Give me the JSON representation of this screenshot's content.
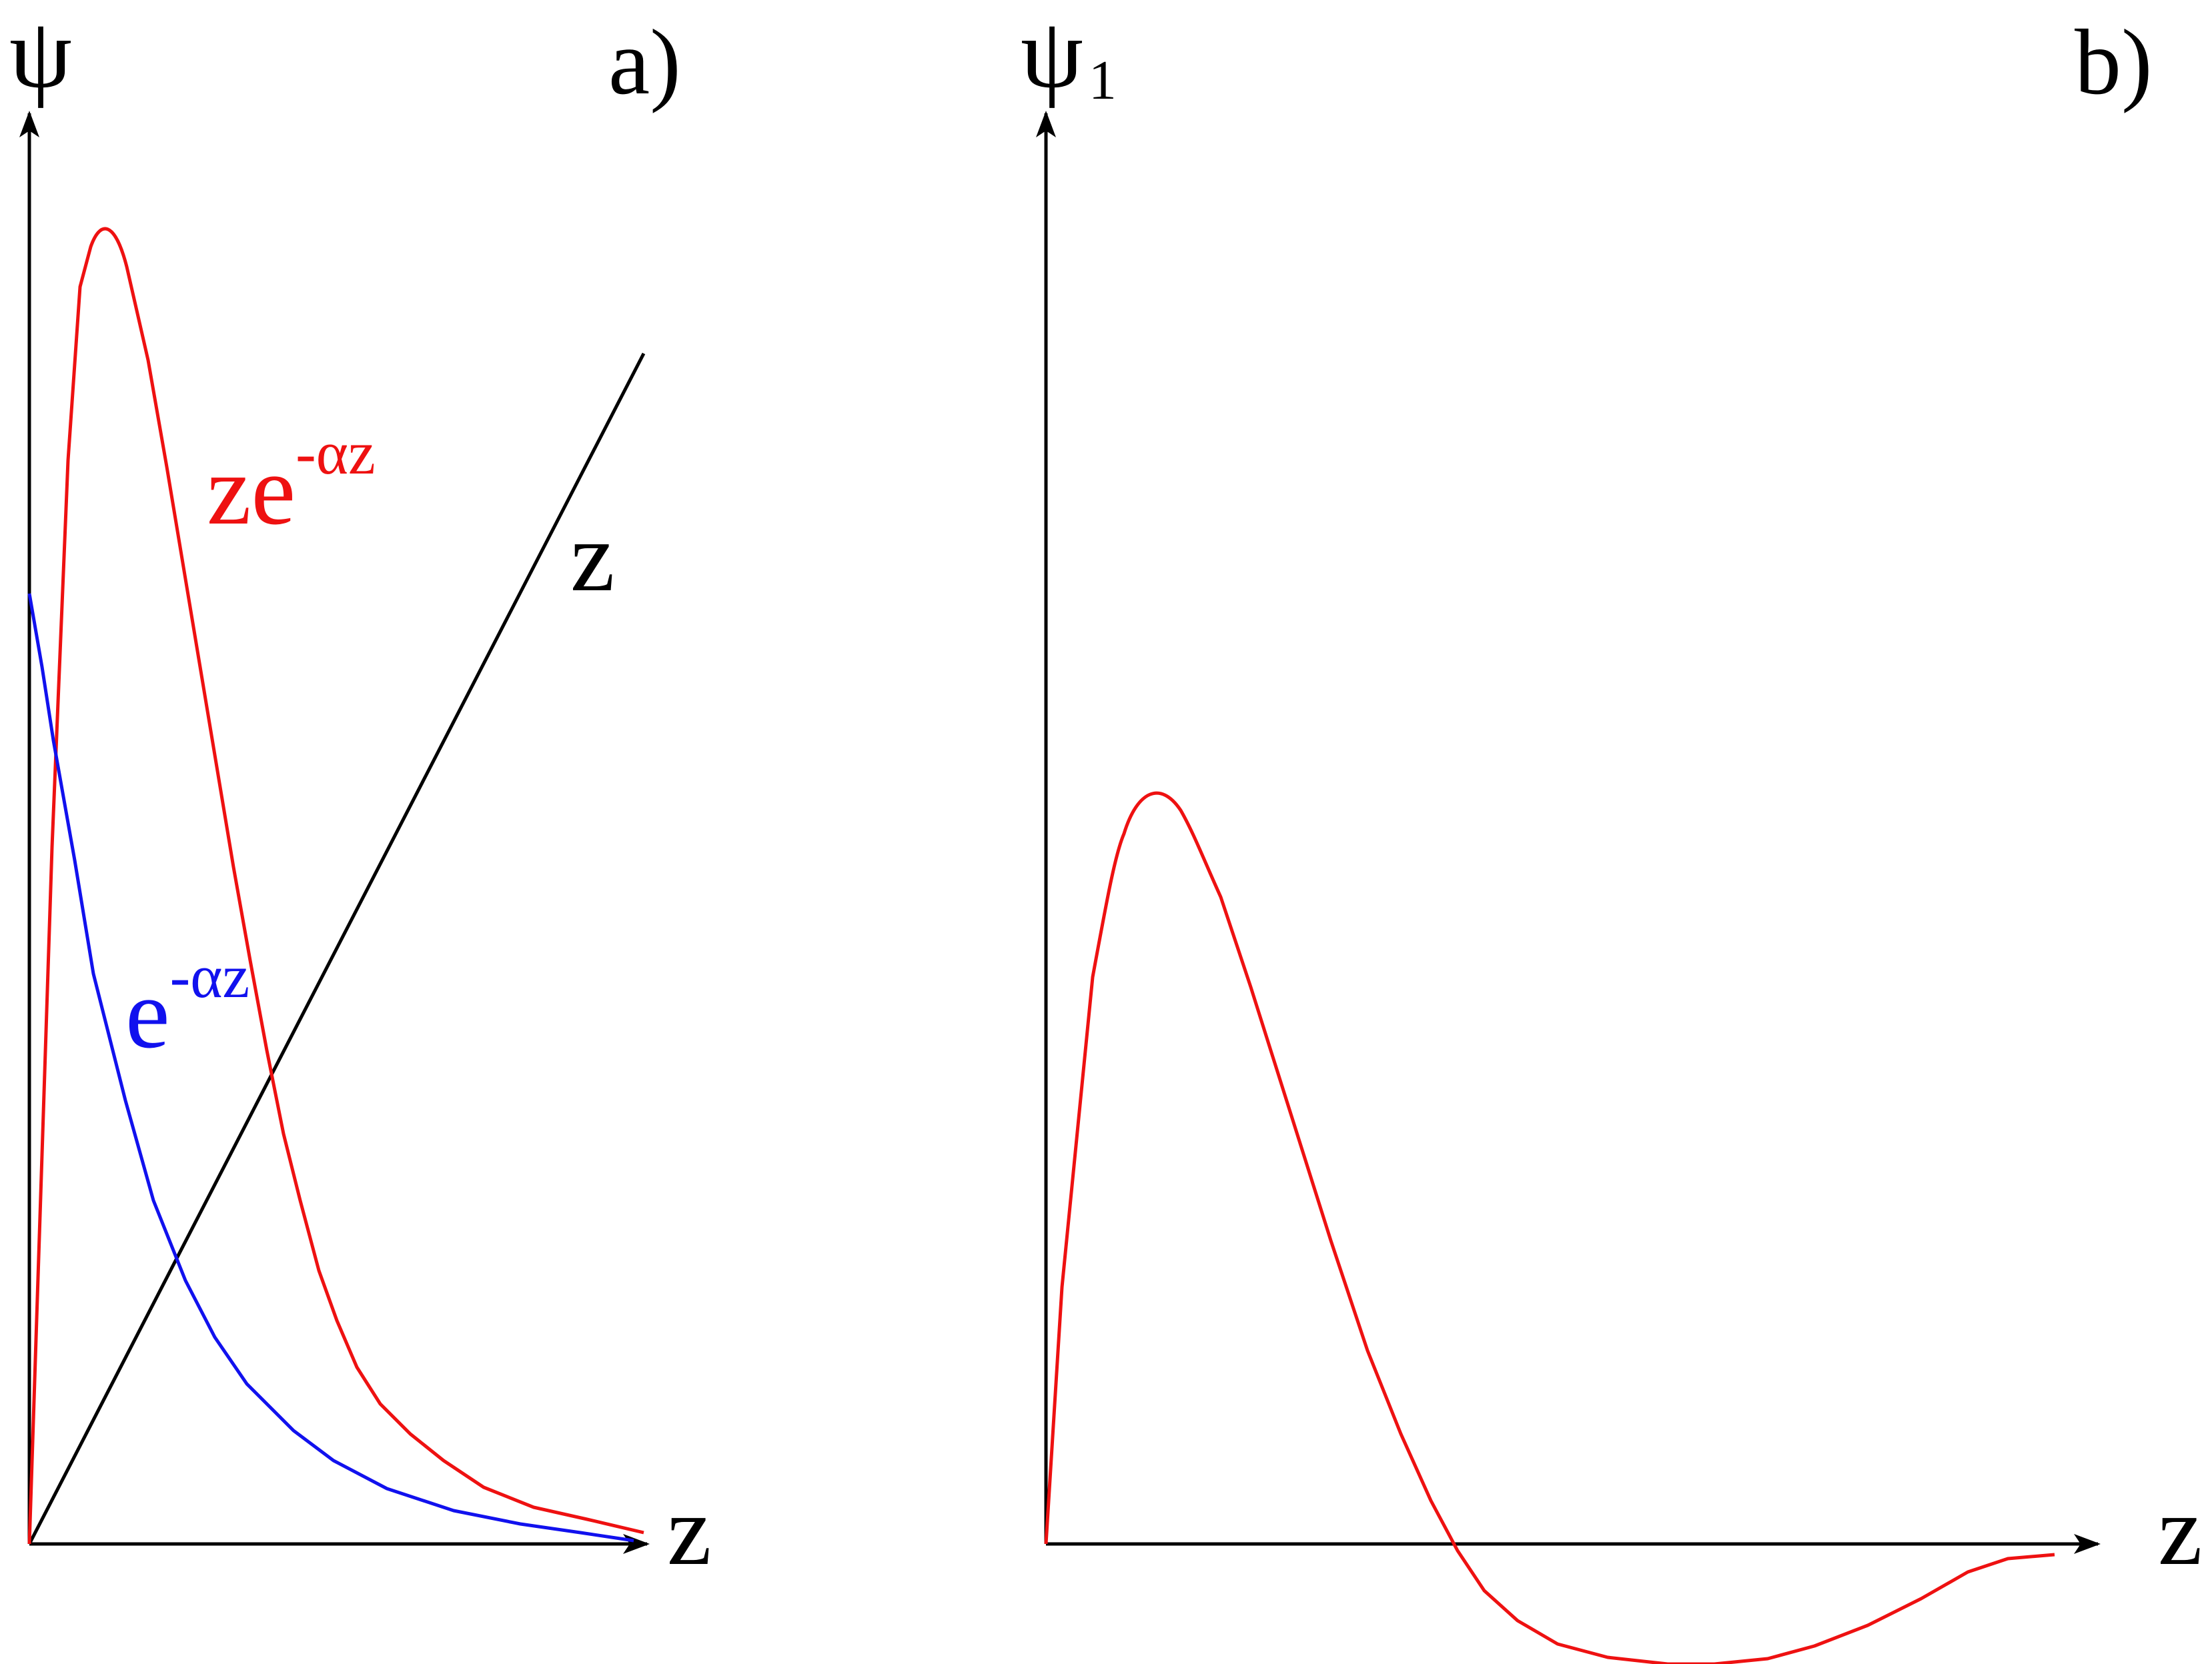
{
  "panel_a": {
    "tag": "a)",
    "y_axis_label": "ψ",
    "x_axis_label": "z",
    "curves": {
      "z": {
        "label": "z",
        "color": "#000000"
      },
      "ze": {
        "base": "ze",
        "sup": "-αz",
        "color": "#ee1111"
      },
      "e": {
        "base": "e",
        "sup": "-αz",
        "color": "#1111ee"
      }
    }
  },
  "panel_b": {
    "tag": "b)",
    "y_axis_label": "ψ",
    "y_axis_sub": "1",
    "x_axis_label": "z",
    "curve_color": "#ee1111"
  },
  "colors": {
    "axis": "#000000",
    "red": "#ee1111",
    "blue": "#1111ee"
  }
}
